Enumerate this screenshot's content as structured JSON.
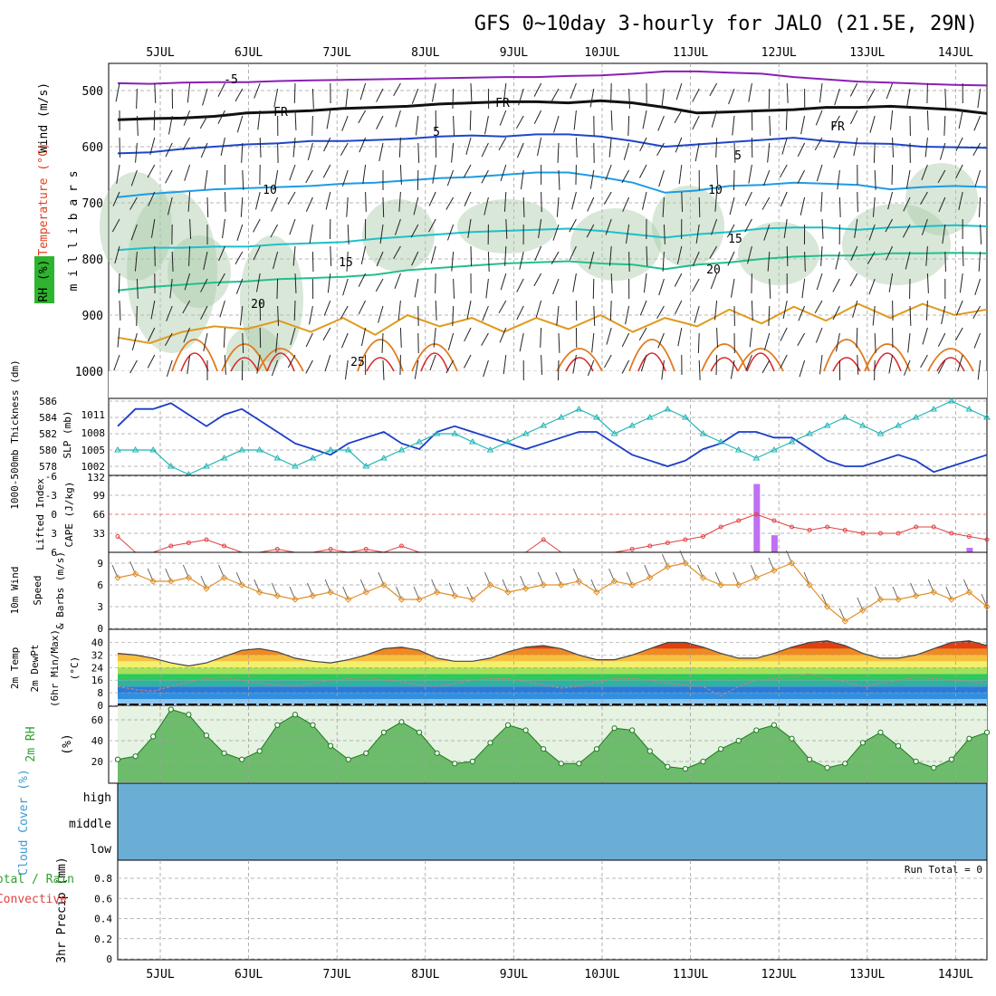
{
  "title": "GFS 0~10day 3-hourly for JALO (21.5E, 29N)",
  "date_labels": [
    "5JUL",
    "6JUL",
    "7JUL",
    "8JUL",
    "9JUL",
    "10JUL",
    "11JUL",
    "12JUL",
    "13JUL",
    "14JUL"
  ],
  "colors": {
    "grid": "#a0a0a0",
    "cloud": "#6aaed6",
    "rh_fill": "#3cb43c",
    "temp_red": "#cc2200",
    "slp": "#1a3cc8",
    "thickness": "#22b4b4",
    "cape": "#c060f0",
    "lifted": "#e04040",
    "wind": "#e0902a"
  },
  "chart_data": [
    {
      "type": "line",
      "panel": "upper-air",
      "ylabel": "m i l l i b a r s",
      "side_labels": [
        "RH (%)",
        "Temperature (°C)",
        "Wind (m/s)"
      ],
      "y_ticks": [
        500,
        600,
        700,
        800,
        900,
        1000
      ],
      "ylim": [
        1000,
        450
      ],
      "isotherm_labels": [
        "-5",
        "FR",
        "FR",
        "FR",
        "5",
        "5",
        "10",
        "10",
        "15",
        "15",
        "20",
        "20",
        "25"
      ],
      "series": [
        {
          "name": "-5",
          "color": "#8a1fb4",
          "values": [
            487,
            488,
            486,
            485,
            485,
            483,
            482,
            481,
            480,
            479,
            478,
            477,
            476,
            476,
            474,
            473,
            470,
            466,
            466,
            468,
            470,
            476,
            480,
            484,
            486,
            488,
            490,
            491
          ]
        },
        {
          "name": "FR",
          "color": "#111111",
          "values": [
            552,
            550,
            549,
            546,
            540,
            538,
            536,
            532,
            530,
            528,
            524,
            522,
            520,
            520,
            522,
            518,
            522,
            530,
            540,
            538,
            536,
            534,
            530,
            530,
            528,
            531,
            534,
            541
          ]
        },
        {
          "name": "5",
          "color": "#1e46c8",
          "values": [
            612,
            610,
            604,
            600,
            596,
            594,
            590,
            590,
            588,
            586,
            582,
            580,
            582,
            578,
            578,
            582,
            590,
            600,
            596,
            592,
            588,
            584,
            590,
            594,
            595,
            600,
            601,
            602
          ]
        },
        {
          "name": "10",
          "color": "#1e9be6",
          "values": [
            690,
            684,
            680,
            676,
            674,
            672,
            670,
            666,
            664,
            660,
            656,
            654,
            650,
            646,
            646,
            654,
            664,
            682,
            678,
            670,
            668,
            664,
            666,
            668,
            676,
            672,
            670,
            672
          ]
        },
        {
          "name": "15",
          "color": "#1ec0c8",
          "values": [
            784,
            780,
            780,
            778,
            778,
            774,
            772,
            770,
            764,
            760,
            756,
            752,
            750,
            748,
            746,
            750,
            756,
            762,
            756,
            752,
            746,
            744,
            744,
            748,
            744,
            742,
            740,
            742
          ]
        },
        {
          "name": "20",
          "color": "#22c08c",
          "values": [
            856,
            850,
            846,
            842,
            840,
            836,
            834,
            832,
            828,
            820,
            816,
            812,
            808,
            806,
            804,
            808,
            810,
            818,
            810,
            806,
            800,
            796,
            794,
            794,
            790,
            790,
            789,
            790
          ]
        },
        {
          "name": "25",
          "color": "#e09a1e",
          "values": [
            940,
            950,
            930,
            920,
            925,
            910,
            930,
            905,
            935,
            900,
            920,
            905,
            930,
            905,
            925,
            900,
            930,
            905,
            920,
            890,
            915,
            885,
            910,
            880,
            905,
            880,
            900,
            890
          ]
        }
      ]
    },
    {
      "type": "line",
      "panel": "thickness-slp",
      "ylabel_left": "1000-500mb Thickness (dm)",
      "ylabel_right": "SLP (mb)",
      "y_ticks_left": [
        "586",
        "584",
        "582",
        "580",
        "578"
      ],
      "y_ticks_right": [
        "1011",
        "1008",
        "1005",
        "1002"
      ],
      "series": [
        {
          "name": "SLP (mb)",
          "color": "#1a3cc8",
          "values": [
            1009,
            1012,
            1012,
            1013,
            1011,
            1009,
            1011,
            1012,
            1010,
            1008,
            1006,
            1005,
            1004,
            1006,
            1007,
            1008,
            1006,
            1005,
            1008,
            1009,
            1008,
            1007,
            1006,
            1005,
            1006,
            1007,
            1008,
            1008,
            1006,
            1004,
            1003,
            1002,
            1003,
            1005,
            1006,
            1008,
            1008,
            1007,
            1007,
            1005,
            1003,
            1002,
            1002,
            1003,
            1004,
            1003,
            1001,
            1002,
            1003,
            1004
          ]
        },
        {
          "name": "Thickness (dm)",
          "color": "#22b4b4",
          "values": [
            580,
            580,
            580,
            578,
            577,
            578,
            579,
            580,
            580,
            579,
            578,
            579,
            580,
            580,
            578,
            579,
            580,
            581,
            582,
            582,
            581,
            580,
            581,
            582,
            583,
            584,
            585,
            584,
            582,
            583,
            584,
            585,
            584,
            582,
            581,
            580,
            579,
            580,
            581,
            582,
            583,
            584,
            583,
            582,
            583,
            584,
            585,
            586,
            585,
            584
          ]
        }
      ]
    },
    {
      "type": "bar",
      "panel": "cape-lifted",
      "ylabel_left": "Lifted Index",
      "ylabel_right": "CAPE (J/kg)",
      "y_ticks_li": [
        "-6",
        "-3",
        "0",
        "3",
        "6"
      ],
      "y_ticks_cape": [
        "132",
        "99",
        "66",
        "33"
      ],
      "cape_values": [
        0,
        0,
        0,
        0,
        0,
        0,
        0,
        0,
        0,
        0,
        0,
        0,
        0,
        0,
        0,
        0,
        0,
        0,
        0,
        0,
        0,
        0,
        0,
        0,
        0,
        0,
        0,
        0,
        0,
        0,
        0,
        0,
        0,
        0,
        0,
        0,
        120,
        30,
        0,
        0,
        0,
        0,
        0,
        0,
        0,
        0,
        0,
        0,
        8,
        0
      ],
      "series": [
        {
          "name": "Lifted Index",
          "color": "#e04040",
          "values": [
            3.5,
            6,
            6,
            5,
            4.5,
            4,
            5,
            6,
            6,
            5.5,
            6,
            6,
            5.5,
            6,
            5.5,
            6,
            5,
            6,
            6,
            6,
            6,
            6,
            6,
            6,
            4,
            6,
            6,
            6,
            6,
            5.5,
            5,
            4.5,
            4,
            3.5,
            2,
            1,
            0,
            1,
            2,
            2.5,
            2,
            2.5,
            3,
            3,
            3,
            2,
            2,
            3,
            3.5,
            4
          ]
        }
      ]
    },
    {
      "type": "line",
      "panel": "10m-wind",
      "ylabel_left": "10m Wind",
      "ylabel_mid": "Speed",
      "ylabel_right": "& Barbs (m/s)",
      "y_ticks": [
        "9",
        "6",
        "3",
        "0"
      ],
      "ylim": [
        0,
        10
      ],
      "series": [
        {
          "name": "10m Wind Speed",
          "color": "#e0902a",
          "values": [
            7,
            7.5,
            6.5,
            6.5,
            7,
            5.5,
            7,
            6,
            5,
            4.5,
            4,
            4.5,
            5,
            4,
            5,
            6,
            4,
            4,
            5,
            4.5,
            4,
            6,
            5,
            5.5,
            6,
            6,
            6.5,
            5,
            6.5,
            6,
            7,
            8.5,
            9,
            7,
            6,
            6,
            7,
            8,
            9,
            6,
            3,
            1,
            2.5,
            4,
            4,
            4.5,
            5,
            4,
            5,
            3
          ]
        }
      ]
    },
    {
      "type": "area",
      "panel": "2m-temp",
      "ylabel_left": "2m Temp",
      "ylabel_mid": "2m DewPt",
      "ylabel_right": "(6hr Min/Max)",
      "unit": "(°C)",
      "y_ticks": [
        "40",
        "32",
        "24",
        "16",
        "8",
        "0"
      ],
      "ylim": [
        0,
        42
      ],
      "series": [
        {
          "name": "2m Temp",
          "color": "#444444",
          "values": [
            33,
            32,
            30,
            27,
            25,
            27,
            31,
            35,
            36,
            34,
            30,
            28,
            27,
            29,
            32,
            36,
            37,
            35,
            30,
            28,
            28,
            30,
            34,
            37,
            38,
            36,
            32,
            29,
            29,
            32,
            36,
            40,
            40,
            37,
            33,
            30,
            30,
            33,
            37,
            40,
            41,
            38,
            33,
            30,
            30,
            32,
            36,
            40,
            41,
            38
          ]
        },
        {
          "name": "2m DewPt",
          "color": "#c08080",
          "values": [
            12,
            10,
            9,
            12,
            15,
            17,
            18,
            16,
            14,
            13,
            12,
            14,
            16,
            17,
            18,
            16,
            15,
            13,
            12,
            14,
            16,
            17,
            17,
            15,
            13,
            11,
            12,
            15,
            17,
            17,
            16,
            14,
            13,
            12,
            6,
            12,
            16,
            17,
            18,
            20,
            17,
            15,
            12,
            14,
            16,
            18,
            17,
            16,
            15,
            14
          ]
        }
      ]
    },
    {
      "type": "area",
      "panel": "2m-rh",
      "ylabel_left": "2m RH",
      "ylabel_right": "(%)",
      "y_ticks": [
        "60",
        "40",
        "20"
      ],
      "ylim": [
        0,
        75
      ],
      "series": [
        {
          "name": "2m RH",
          "color": "#2ca02c",
          "values": [
            22,
            25,
            44,
            70,
            65,
            45,
            28,
            22,
            30,
            55,
            65,
            55,
            35,
            22,
            28,
            48,
            58,
            48,
            28,
            18,
            20,
            38,
            55,
            50,
            32,
            18,
            18,
            32,
            52,
            50,
            30,
            15,
            13,
            20,
            32,
            40,
            50,
            55,
            42,
            22,
            14,
            18,
            38,
            48,
            35,
            20,
            14,
            22,
            42,
            48
          ]
        }
      ]
    },
    {
      "type": "area",
      "panel": "cloud-cover",
      "ylabel": "Cloud Cover (%)",
      "layer_labels": [
        "high",
        "middle",
        "low"
      ]
    },
    {
      "type": "bar",
      "panel": "precip",
      "ylabel_left": "Total / Rain",
      "ylabel_mid": "Convective",
      "ylabel_right": "3hr Precip (mm)",
      "y_ticks": [
        "0.8",
        "0.6",
        "0.4",
        "0.2",
        "0"
      ],
      "ylim": [
        0,
        1
      ],
      "run_total": "Run Total = 0"
    }
  ]
}
